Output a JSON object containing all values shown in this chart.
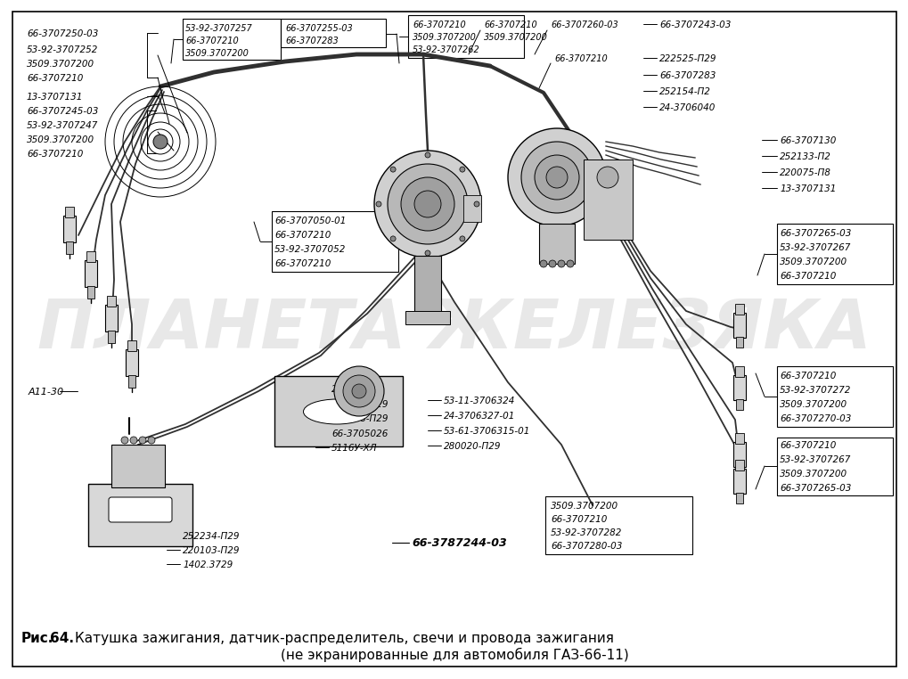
{
  "fig_w": 10.0,
  "fig_h": 7.43,
  "dpi": 100,
  "bg": "#ffffff",
  "caption_prefix": "Рис.",
  "caption_num": " 64.",
  "caption_l1": " Катушка зажигания, датчик-распределитель, свечи и провода зажигания",
  "caption_l2": "(не экранированные для автомобиля ГАЗ-66-11)",
  "watermark": "ПЛАНЕТА ЖЕЛЕЗЯКА",
  "left_top_labels": [
    [
      "66-3707250-03",
      20,
      28
    ],
    [
      "53-92-3707252",
      20,
      46
    ],
    [
      "3509.3707200",
      20,
      62
    ],
    [
      "66-3707210",
      20,
      78
    ],
    [
      "13-3707131",
      20,
      99
    ],
    [
      "66-3707245-03",
      20,
      115
    ],
    [
      "53-92-3707247",
      20,
      131
    ],
    [
      "3509.3707200",
      20,
      147
    ],
    [
      "66-3707210",
      20,
      163
    ]
  ],
  "top_mid_box_labels": [
    [
      "53-92-3707257",
      198,
      22
    ],
    [
      "66-3707210",
      198,
      36
    ],
    [
      "3509.3707200",
      198,
      50
    ]
  ],
  "top_mid_box2_labels": [
    [
      "66-3707255-03",
      310,
      22
    ],
    [
      "66-3707283",
      310,
      36
    ]
  ],
  "top_right_box_labels": [
    [
      "66-3707210",
      453,
      18
    ],
    [
      "3509.3707200",
      453,
      32
    ],
    [
      "53-92-3707262",
      453,
      46
    ]
  ],
  "top_far_labels": [
    [
      "66-3707210",
      533,
      18
    ],
    [
      "3509.3707200",
      533,
      32
    ],
    [
      "66-3707260-03",
      608,
      18
    ],
    [
      "66-3707210",
      612,
      56
    ]
  ],
  "right_top_labels": [
    [
      "66-3707243-03",
      730,
      18
    ],
    [
      "222525-П29",
      730,
      56
    ],
    [
      "66-3707283",
      730,
      75
    ],
    [
      "252154-П2",
      730,
      93
    ],
    [
      "24-3706040",
      730,
      111
    ]
  ],
  "right_mid_labels": [
    [
      "66-3707130",
      865,
      148
    ],
    [
      "252133-П2",
      865,
      166
    ],
    [
      "220075-П8",
      865,
      184
    ],
    [
      "13-3707131",
      865,
      202
    ]
  ],
  "right_box_labels": [
    [
      "66-3707265-03",
      865,
      252
    ],
    [
      "53-92-3707267",
      865,
      268
    ],
    [
      "3509.3707200",
      865,
      284
    ],
    [
      "66-3707210",
      865,
      300
    ]
  ],
  "right_bot_labels": [
    [
      "66-3707210",
      865,
      412
    ],
    [
      "53-92-3707272",
      865,
      428
    ],
    [
      "3509.3707200",
      865,
      444
    ],
    [
      "66-3707270-03",
      865,
      460
    ]
  ],
  "right_bot2_labels": [
    [
      "66-3707210",
      865,
      490
    ],
    [
      "53-92-3707267",
      865,
      506
    ],
    [
      "3509.3707200",
      865,
      522
    ],
    [
      "66-3707265-03",
      865,
      538
    ]
  ],
  "left_mid_box_labels": [
    [
      "66-3707050-01",
      298,
      238
    ],
    [
      "66-3707210",
      298,
      254
    ],
    [
      "53-92-3707052",
      298,
      270
    ],
    [
      "66-3707210",
      298,
      286
    ]
  ],
  "center_bot_labels": [
    [
      "2402.3706",
      362,
      427
    ],
    [
      "222522-П29",
      362,
      444
    ],
    [
      "293228-П29",
      362,
      460
    ],
    [
      "66-3705026",
      362,
      477
    ],
    [
      "5116У-ХЛ",
      362,
      493
    ]
  ],
  "center_right_bot_labels": [
    [
      "53-11-3706324",
      488,
      440
    ],
    [
      "24-3706327-01",
      488,
      457
    ],
    [
      "53-61-3706315-01",
      488,
      474
    ],
    [
      "280020-П29",
      488,
      491
    ]
  ],
  "bot_left_labels": [
    [
      "252234-П29",
      195,
      592
    ],
    [
      "220103-П29",
      195,
      608
    ],
    [
      "1402.3729",
      195,
      624
    ]
  ],
  "bot_center_box_labels": [
    [
      "3509.3707200",
      608,
      558
    ],
    [
      "66-3707210",
      608,
      573
    ],
    [
      "53-92-3707282",
      608,
      588
    ],
    [
      "66-3707280-03",
      608,
      603
    ]
  ],
  "label_a11": [
    "А11-30",
    22,
    430
  ],
  "label_bold": [
    "66-3787244-03",
    452,
    600
  ]
}
